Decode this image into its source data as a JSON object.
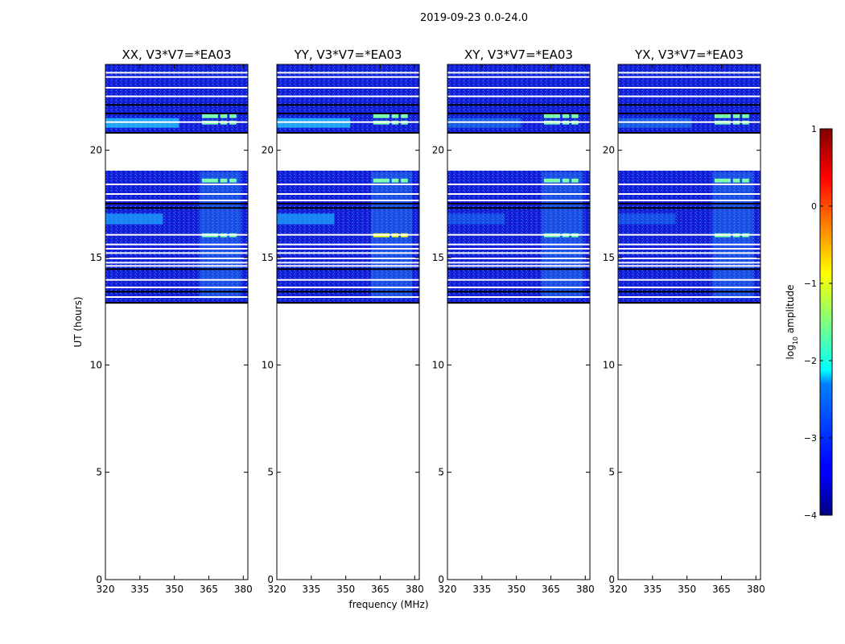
{
  "chart_data": {
    "type": "heatmap",
    "suptitle": "2019-09-23 0.0-24.0",
    "xlabel": "frequency (MHz)",
    "ylabel": "UT (hours)",
    "xlim": [
      320,
      382
    ],
    "ylim": [
      0,
      24
    ],
    "xticks": [
      "320",
      "335",
      "350",
      "365",
      "380"
    ],
    "xtick_values": [
      320,
      335,
      350,
      365,
      380
    ],
    "yticks": [
      "0",
      "5",
      "10",
      "15",
      "20"
    ],
    "ytick_values": [
      0,
      5,
      10,
      15,
      20
    ],
    "data_time_range_hours": [
      12.9,
      24.0
    ],
    "panels": [
      {
        "title": "XX, V3*V7=*EA03",
        "pol": "XX"
      },
      {
        "title": "YY, V3*V7=*EA03",
        "pol": "YY"
      },
      {
        "title": "XY, V3*V7=*EA03",
        "pol": "XY"
      },
      {
        "title": "YX, V3*V7=*EA03",
        "pol": "YX"
      }
    ],
    "colorbar": {
      "label": "log10 amplitude",
      "label_main": "log",
      "label_sub": "10",
      "label_rest": " amplitude",
      "range": [
        -4,
        1
      ],
      "ticks": [
        "1",
        "0",
        "−1",
        "−2",
        "−3",
        "−4"
      ],
      "tick_values": [
        1,
        0,
        -1,
        -2,
        -3,
        -4
      ],
      "colormap": "jet"
    },
    "flagged_gaps_hours": [
      [
        19.05,
        20.85
      ]
    ],
    "bright_rfi_bands_mhz": [
      [
        362,
        366
      ],
      [
        366,
        369
      ],
      [
        370,
        373
      ],
      [
        374,
        377
      ]
    ],
    "bright_rfi_hours": [
      15.95,
      18.5,
      21.2,
      21.5
    ]
  }
}
